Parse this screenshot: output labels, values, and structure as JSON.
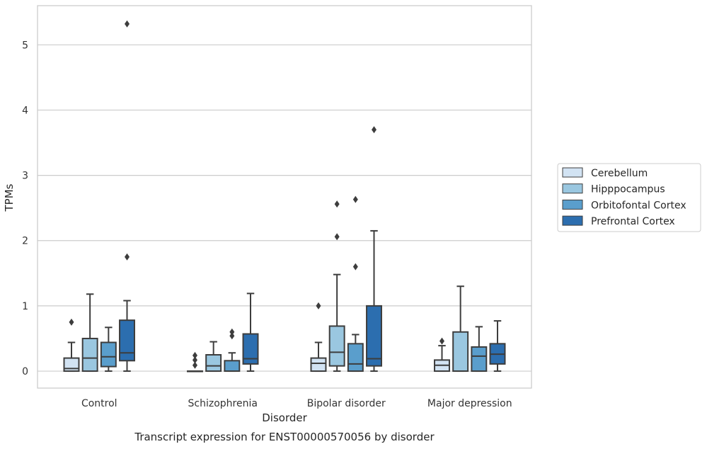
{
  "caption": "Transcript expression for ENST00000570056 by disorder",
  "chart_data": {
    "type": "box",
    "xlabel": "Disorder",
    "ylabel": "TPMs",
    "ylim": [
      -0.26,
      5.6
    ],
    "yticks": [
      0,
      1,
      2,
      3,
      4,
      5
    ],
    "grid": "horizontal",
    "legend_position": "right",
    "categories": [
      "Control",
      "Schizophrenia",
      "Bipolar disorder",
      "Major depression"
    ],
    "series": [
      {
        "name": "Cerebellum",
        "color": "#d2e3f3",
        "boxes": [
          {
            "whisker_low": 0.0,
            "q1": 0.0,
            "median": 0.04,
            "q3": 0.2,
            "whisker_high": 0.44,
            "outliers": [
              0.75
            ]
          },
          {
            "whisker_low": 0.0,
            "q1": 0.0,
            "median": 0.0,
            "q3": 0.0,
            "whisker_high": 0.0,
            "outliers": [
              0.09,
              0.17,
              0.24
            ]
          },
          {
            "whisker_low": 0.0,
            "q1": 0.0,
            "median": 0.12,
            "q3": 0.2,
            "whisker_high": 0.44,
            "outliers": [
              1.0
            ]
          },
          {
            "whisker_low": 0.0,
            "q1": 0.0,
            "median": 0.09,
            "q3": 0.17,
            "whisker_high": 0.39,
            "outliers": [
              0.46
            ]
          }
        ]
      },
      {
        "name": "Hipppocampus",
        "color": "#9ac7e0",
        "boxes": [
          {
            "whisker_low": 0.0,
            "q1": 0.0,
            "median": 0.2,
            "q3": 0.5,
            "whisker_high": 1.18,
            "outliers": []
          },
          {
            "whisker_low": 0.0,
            "q1": 0.0,
            "median": 0.08,
            "q3": 0.25,
            "whisker_high": 0.45,
            "outliers": []
          },
          {
            "whisker_low": 0.0,
            "q1": 0.08,
            "median": 0.29,
            "q3": 0.69,
            "whisker_high": 1.48,
            "outliers": [
              2.06,
              2.56
            ]
          },
          {
            "whisker_low": 0.0,
            "q1": 0.0,
            "median": 0.0,
            "q3": 0.6,
            "whisker_high": 1.3,
            "outliers": []
          }
        ]
      },
      {
        "name": "Orbitofontal Cortex",
        "color": "#5a9ecc",
        "boxes": [
          {
            "whisker_low": 0.0,
            "q1": 0.07,
            "median": 0.22,
            "q3": 0.44,
            "whisker_high": 0.67,
            "outliers": []
          },
          {
            "whisker_low": 0.0,
            "q1": 0.0,
            "median": 0.0,
            "q3": 0.16,
            "whisker_high": 0.28,
            "outliers": [
              0.54,
              0.6
            ]
          },
          {
            "whisker_low": 0.0,
            "q1": 0.0,
            "median": 0.11,
            "q3": 0.42,
            "whisker_high": 0.56,
            "outliers": [
              1.6,
              2.63
            ]
          },
          {
            "whisker_low": 0.0,
            "q1": 0.0,
            "median": 0.23,
            "q3": 0.37,
            "whisker_high": 0.68,
            "outliers": []
          }
        ]
      },
      {
        "name": "Prefrontal Cortex",
        "color": "#2c6eaf",
        "boxes": [
          {
            "whisker_low": 0.0,
            "q1": 0.16,
            "median": 0.28,
            "q3": 0.78,
            "whisker_high": 1.08,
            "outliers": [
              1.75,
              5.32
            ]
          },
          {
            "whisker_low": 0.0,
            "q1": 0.11,
            "median": 0.19,
            "q3": 0.57,
            "whisker_high": 1.19,
            "outliers": []
          },
          {
            "whisker_low": 0.0,
            "q1": 0.08,
            "median": 0.19,
            "q3": 1.0,
            "whisker_high": 2.15,
            "outliers": [
              3.7
            ]
          },
          {
            "whisker_low": 0.0,
            "q1": 0.11,
            "median": 0.26,
            "q3": 0.42,
            "whisker_high": 0.77,
            "outliers": []
          }
        ]
      }
    ]
  }
}
